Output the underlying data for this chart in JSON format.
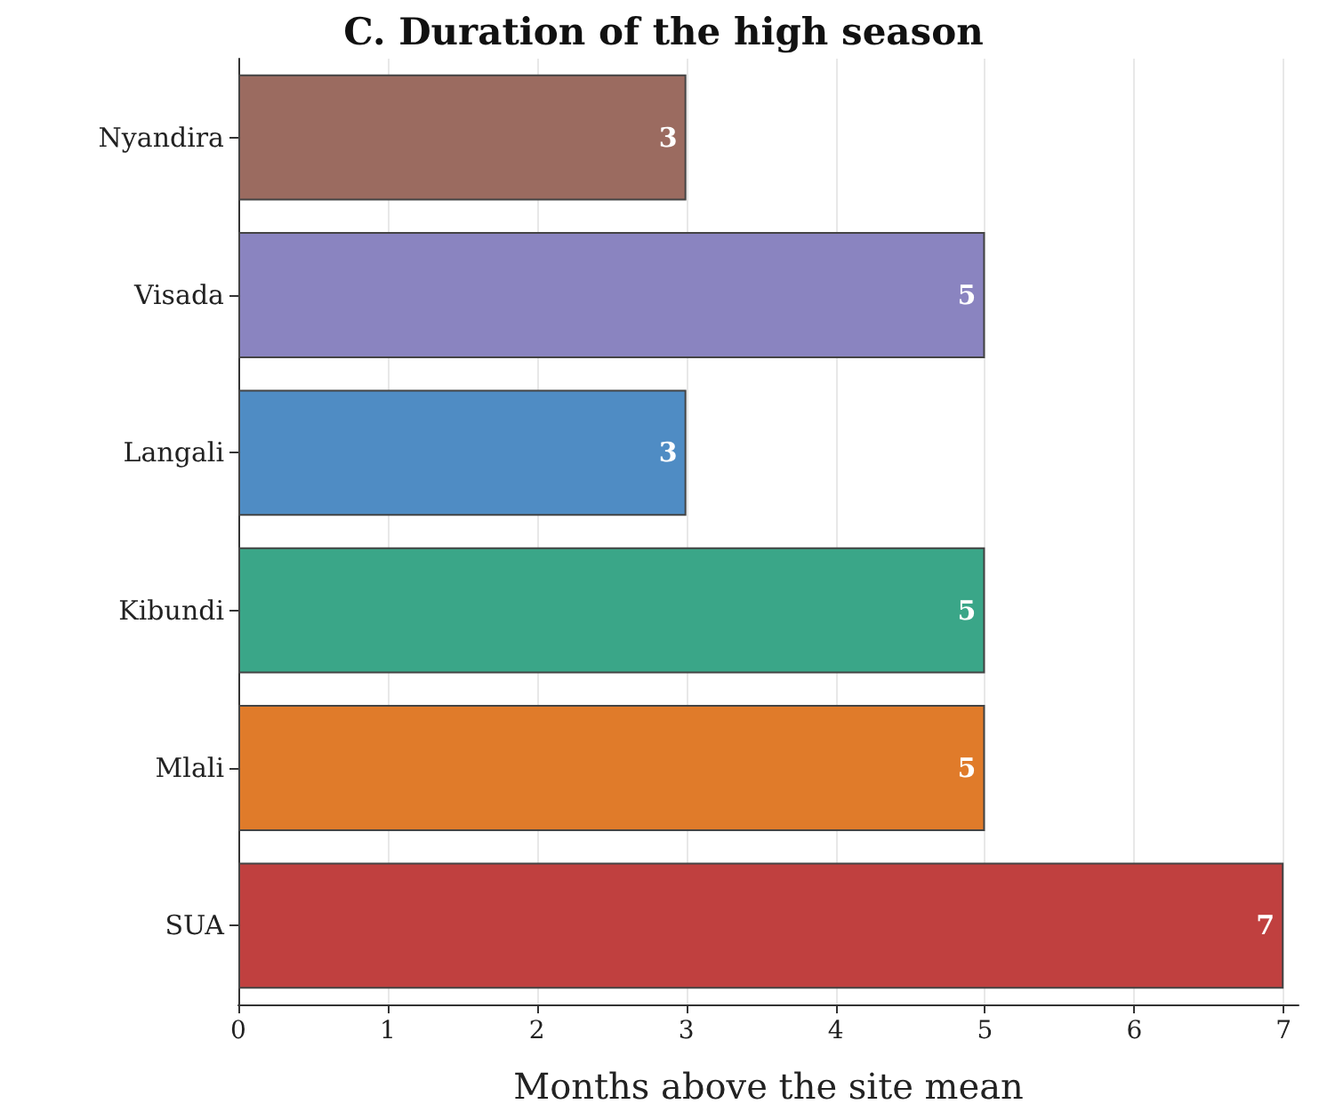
{
  "chart_data": {
    "type": "bar",
    "orientation": "horizontal",
    "title": "C. Duration of the high season",
    "xlabel": "Months above the site mean",
    "categories": [
      "Nyandira",
      "Visada",
      "Langali",
      "Kibundi",
      "Mlali",
      "SUA"
    ],
    "values": [
      3,
      5,
      3,
      5,
      5,
      7
    ],
    "colors": [
      "#9b6b60",
      "#8a84c0",
      "#4f8cc4",
      "#3aa688",
      "#e07b2a",
      "#c0403f"
    ],
    "xlim": [
      0,
      7.1
    ],
    "xticks": [
      0,
      1,
      2,
      3,
      4,
      5,
      6,
      7
    ],
    "grid": "x",
    "data_labels": true
  }
}
